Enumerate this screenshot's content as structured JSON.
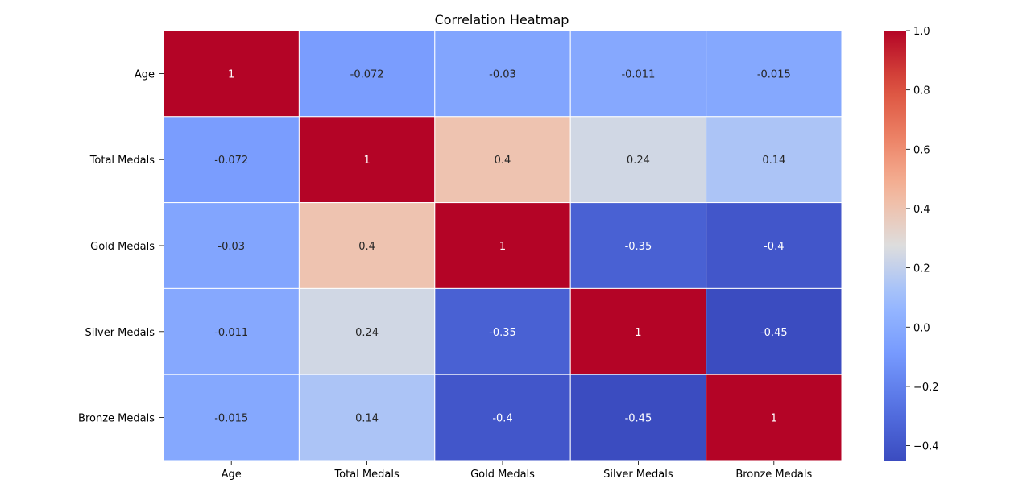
{
  "chart_data": {
    "type": "heatmap",
    "title": "Correlation Heatmap",
    "xlabel": "",
    "ylabel": "",
    "rows": [
      "Age",
      "Total Medals",
      "Gold Medals",
      "Silver Medals",
      "Bronze Medals"
    ],
    "columns": [
      "Age",
      "Total Medals",
      "Gold Medals",
      "Silver Medals",
      "Bronze Medals"
    ],
    "values": [
      [
        1,
        -0.072,
        -0.03,
        -0.011,
        -0.015
      ],
      [
        -0.072,
        1,
        0.4,
        0.24,
        0.14
      ],
      [
        -0.03,
        0.4,
        1,
        -0.35,
        -0.4
      ],
      [
        -0.011,
        0.24,
        -0.35,
        1,
        -0.45
      ],
      [
        -0.015,
        0.14,
        -0.4,
        -0.45,
        1
      ]
    ],
    "value_labels": [
      [
        "1",
        "-0.072",
        "-0.03",
        "-0.011",
        "-0.015"
      ],
      [
        "-0.072",
        "1",
        "0.4",
        "0.24",
        "0.14"
      ],
      [
        "-0.03",
        "0.4",
        "1",
        "-0.35",
        "-0.4"
      ],
      [
        "-0.011",
        "0.24",
        "-0.35",
        "1",
        "-0.45"
      ],
      [
        "-0.015",
        "0.14",
        "-0.4",
        "-0.45",
        "1"
      ]
    ],
    "colormap": "coolwarm",
    "colorbar": {
      "range": [
        -0.45,
        1.0
      ],
      "ticks": [
        -0.4,
        -0.2,
        0.0,
        0.2,
        0.4,
        0.6,
        0.8,
        1.0
      ],
      "tick_labels": [
        "−0.4",
        "−0.2",
        "0.0",
        "0.2",
        "0.4",
        "0.6",
        "0.8",
        "1.0"
      ]
    },
    "cell_border_color": "#ffffff",
    "grid": false,
    "legend": "colorbar-right"
  }
}
